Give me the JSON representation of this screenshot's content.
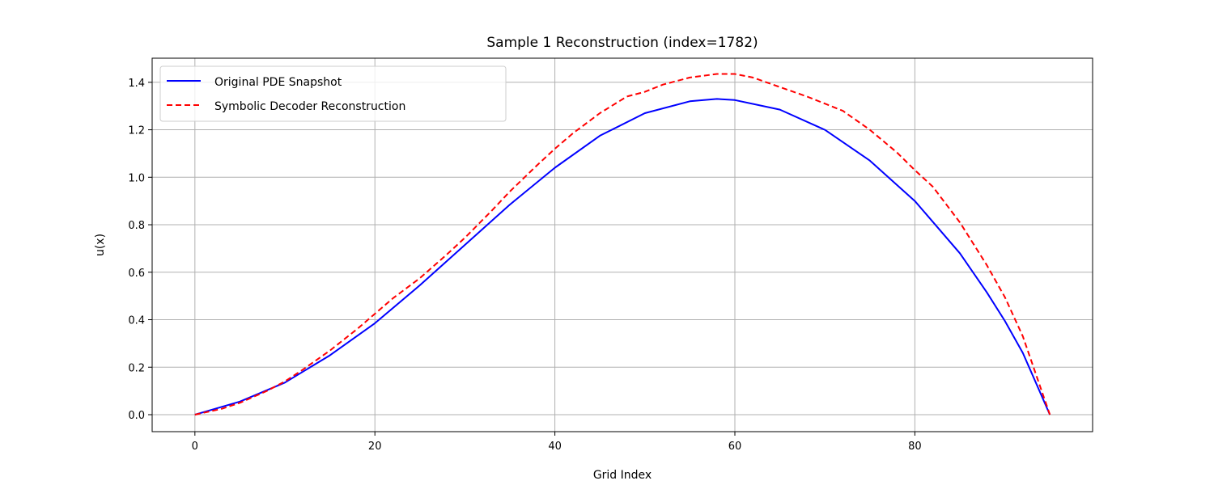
{
  "chart_data": {
    "type": "line",
    "title": "Sample 1 Reconstruction (index=1782)",
    "xlabel": "Grid Index",
    "ylabel": "u(x)",
    "xlim": [
      -4.75,
      99.75
    ],
    "ylim": [
      -0.0715,
      1.5015
    ],
    "xticks": [
      0,
      20,
      40,
      60,
      80
    ],
    "yticks": [
      0.0,
      0.2,
      0.4,
      0.6,
      0.8,
      1.0,
      1.2,
      1.4
    ],
    "xtick_labels": [
      "0",
      "20",
      "40",
      "60",
      "80"
    ],
    "ytick_labels": [
      "0.0",
      "0.2",
      "0.4",
      "0.6",
      "0.8",
      "1.0",
      "1.2",
      "1.4"
    ],
    "grid": true,
    "legend_position": "top-left",
    "series": [
      {
        "name": "Original PDE Snapshot",
        "color": "#0000ff",
        "style": "solid",
        "x": [
          0,
          5,
          10,
          15,
          20,
          25,
          30,
          35,
          40,
          45,
          50,
          55,
          58,
          60,
          65,
          70,
          75,
          80,
          85,
          88,
          90,
          92,
          95
        ],
        "y": [
          0.0,
          0.055,
          0.135,
          0.25,
          0.385,
          0.545,
          0.715,
          0.885,
          1.04,
          1.175,
          1.27,
          1.32,
          1.33,
          1.325,
          1.285,
          1.2,
          1.07,
          0.9,
          0.68,
          0.515,
          0.395,
          0.26,
          0.0
        ]
      },
      {
        "name": "Symbolic Decoder Reconstruction",
        "color": "#ff0000",
        "style": "dashed",
        "x": [
          0,
          3,
          5,
          8,
          10,
          12,
          15,
          18,
          20,
          22,
          25,
          28,
          30,
          33,
          35,
          38,
          40,
          42,
          45,
          48,
          50,
          52,
          55,
          58,
          60,
          62,
          65,
          68,
          70,
          72,
          75,
          78,
          80,
          82,
          85,
          88,
          90,
          92,
          95
        ],
        "y": [
          0.0,
          0.025,
          0.05,
          0.1,
          0.14,
          0.19,
          0.27,
          0.36,
          0.425,
          0.49,
          0.575,
          0.675,
          0.745,
          0.86,
          0.94,
          1.05,
          1.12,
          1.185,
          1.27,
          1.34,
          1.36,
          1.39,
          1.42,
          1.435,
          1.435,
          1.42,
          1.38,
          1.34,
          1.31,
          1.28,
          1.2,
          1.105,
          1.03,
          0.96,
          0.81,
          0.63,
          0.495,
          0.33,
          0.0
        ]
      }
    ]
  }
}
